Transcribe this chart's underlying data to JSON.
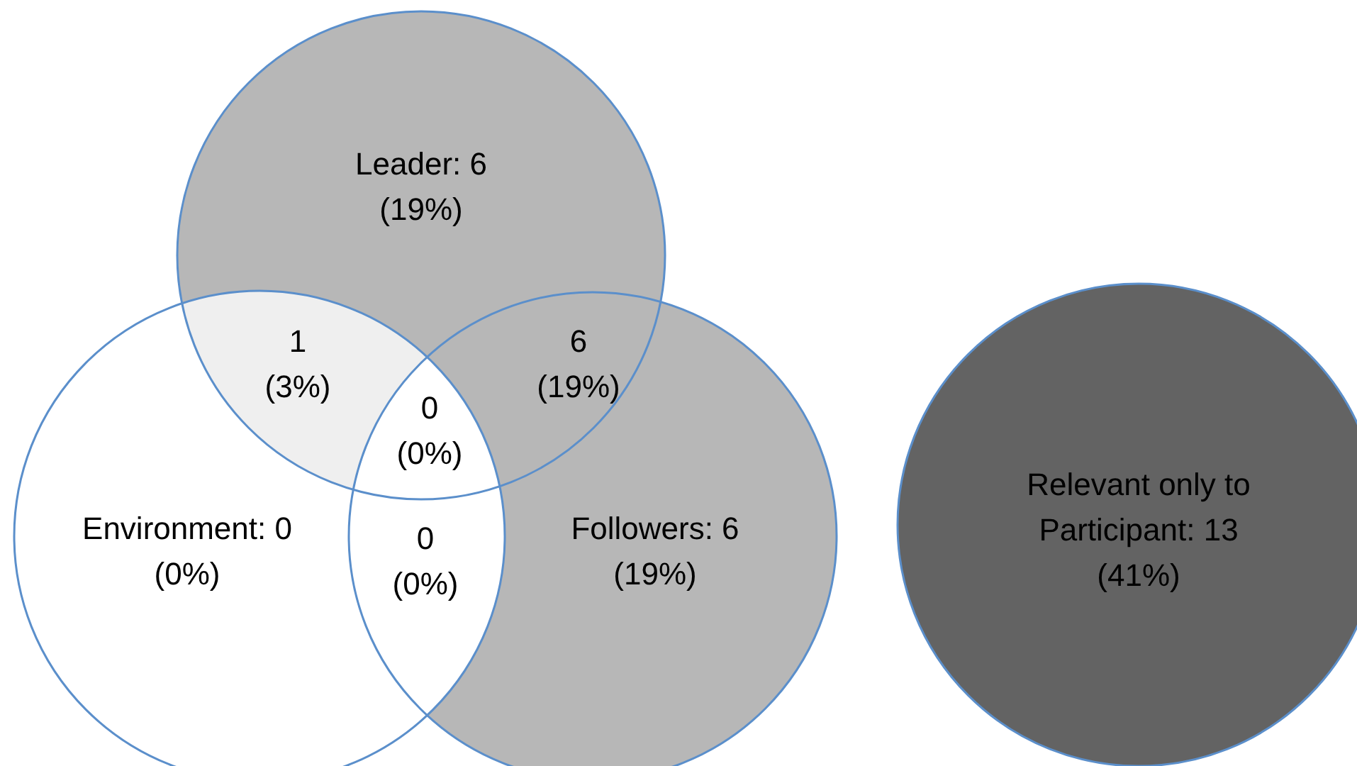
{
  "chart_data": {
    "type": "other",
    "categories": [
      "Leader: 6",
      "Environment: 0",
      "Followers: 6",
      "1",
      "6",
      "0",
      "0",
      "Relevant only to Participant: 13"
    ],
    "values": [
      19,
      0,
      19,
      3,
      19,
      0,
      0,
      41
    ],
    "value_labels": [
      "(19%)",
      "(0%)",
      "(19%)",
      "(3%)",
      "(19%)",
      "(0%)",
      "(0%)",
      "(41%)"
    ],
    "colors": [
      "#b7b7b7",
      "#ffffff",
      "#b7b7b7",
      "#efefef",
      "#b7b7b7",
      "#ffffff",
      "#ffffff",
      "#636363"
    ]
  }
}
